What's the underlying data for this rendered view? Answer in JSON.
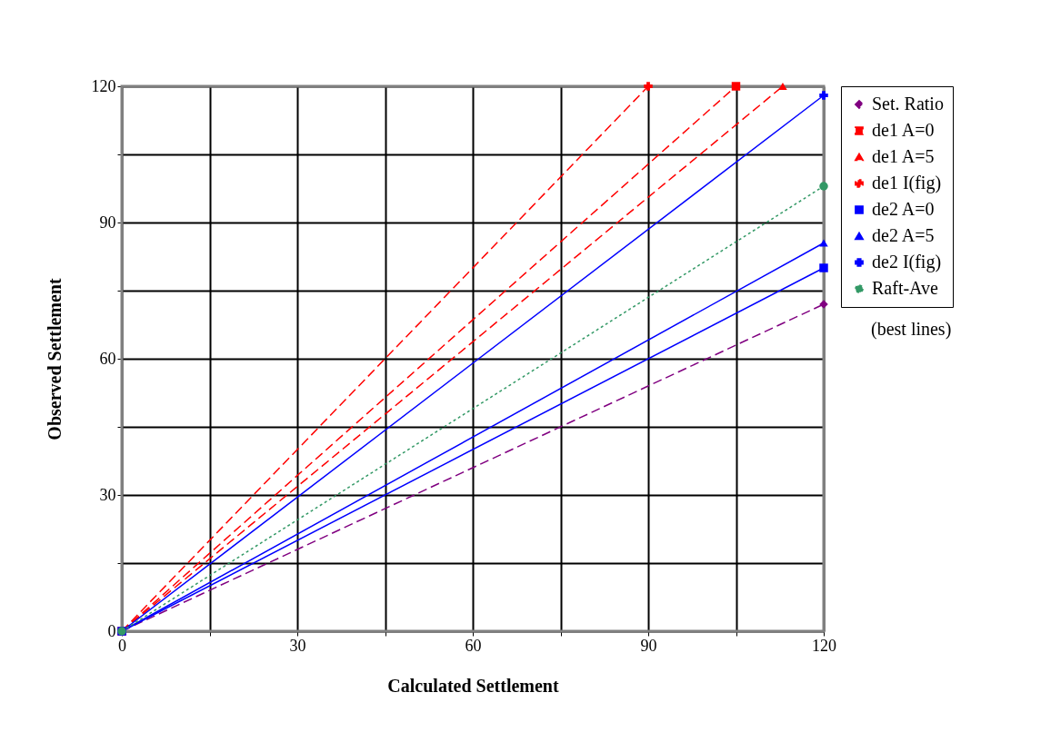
{
  "chart_data": {
    "type": "line",
    "xlabel": "Calculated Settlement",
    "ylabel": "Observed Settlement",
    "xlim": [
      0,
      120
    ],
    "ylim": [
      0,
      120
    ],
    "xticks": [
      0,
      {
        "value": 15,
        "label": null
      },
      30,
      {
        "value": 45,
        "label": null
      },
      60,
      {
        "value": 75,
        "label": null
      },
      90,
      {
        "value": 105,
        "label": null
      },
      120
    ],
    "yticks": [
      0,
      {
        "value": 15,
        "label": null
      },
      30,
      {
        "value": 45,
        "label": null
      },
      60,
      {
        "value": 75,
        "label": null
      },
      90,
      {
        "value": 105,
        "label": null
      },
      120
    ],
    "grid": true,
    "legend": "right",
    "annotations": [
      "(best lines)"
    ],
    "series": [
      {
        "name": "Set. Ratio",
        "color": "#800080",
        "x": [
          0,
          120
        ],
        "values": [
          0,
          72
        ],
        "marker": "diamond",
        "line_style": "dashed"
      },
      {
        "name": "de1 A=0",
        "color": "#ff0000",
        "x": [
          0,
          105
        ],
        "values": [
          0,
          120
        ],
        "marker": "square",
        "line_style": "dashed"
      },
      {
        "name": "de1 A=5",
        "color": "#ff0000",
        "x": [
          0,
          113
        ],
        "values": [
          0,
          120
        ],
        "marker": "triangle",
        "line_style": "dashed"
      },
      {
        "name": "de1 I(fig)",
        "color": "#ff0000",
        "x": [
          0,
          90
        ],
        "values": [
          0,
          120
        ],
        "marker": "cross",
        "line_style": "dashed"
      },
      {
        "name": "de2 A=0",
        "color": "#0000ff",
        "x": [
          0,
          120
        ],
        "values": [
          0,
          80
        ],
        "marker": "square",
        "line_style": "solid"
      },
      {
        "name": "de2 A=5",
        "color": "#0000ff",
        "x": [
          0,
          120
        ],
        "values": [
          0,
          85.5
        ],
        "marker": "triangle",
        "line_style": "solid"
      },
      {
        "name": "de2 I(fig)",
        "color": "#0000ff",
        "x": [
          0,
          120
        ],
        "values": [
          0,
          118
        ],
        "marker": "cross",
        "line_style": "solid"
      },
      {
        "name": "Raft-Ave",
        "color": "#339966",
        "x": [
          0,
          120
        ],
        "values": [
          0,
          98
        ],
        "marker": "circle",
        "line_style": "dotted"
      }
    ]
  }
}
